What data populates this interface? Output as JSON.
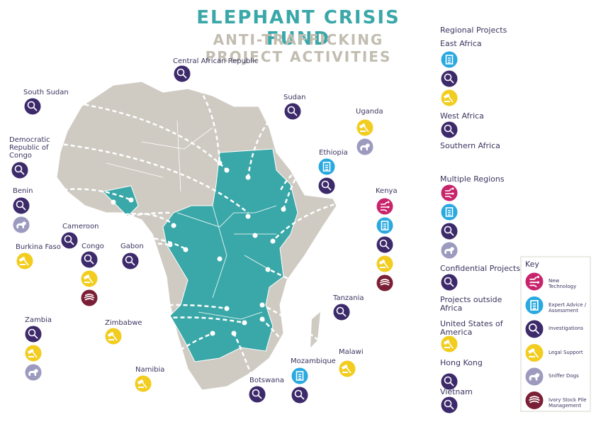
{
  "header": {
    "title": "ELEPHANT CRISIS FUND",
    "subtitle": "ANTI-TRAFFICKING PROJECT ACTIVITIES"
  },
  "countries": [
    "Central African Republic",
    "South Sudan",
    "Sudan",
    "Uganda",
    "Democratic Republic of Congo",
    "Ethiopia",
    "Benin",
    "Kenya",
    "Cameroon",
    "Burkina Faso",
    "Congo",
    "Gabon",
    "Tanzania",
    "Zambia",
    "Zimbabwe",
    "Malawi",
    "Mozambique",
    "Namibia",
    "Botswana"
  ],
  "regional": {
    "title": "Regional Projects",
    "groups": [
      "East Africa",
      "West Africa",
      "Southern Africa",
      "Multiple Regions",
      "Confidential Projects"
    ]
  },
  "outside": {
    "title": "Projects outside Africa",
    "groups": [
      "United States of America",
      "Hong Kong",
      "Vietnam"
    ]
  },
  "key": {
    "title": "Key",
    "items": [
      "New Technology",
      "Expert Advice / Assessment",
      "Investigations",
      "Legal Support",
      "Sniffer Dogs",
      "Ivory Stock Pile Management"
    ]
  }
}
